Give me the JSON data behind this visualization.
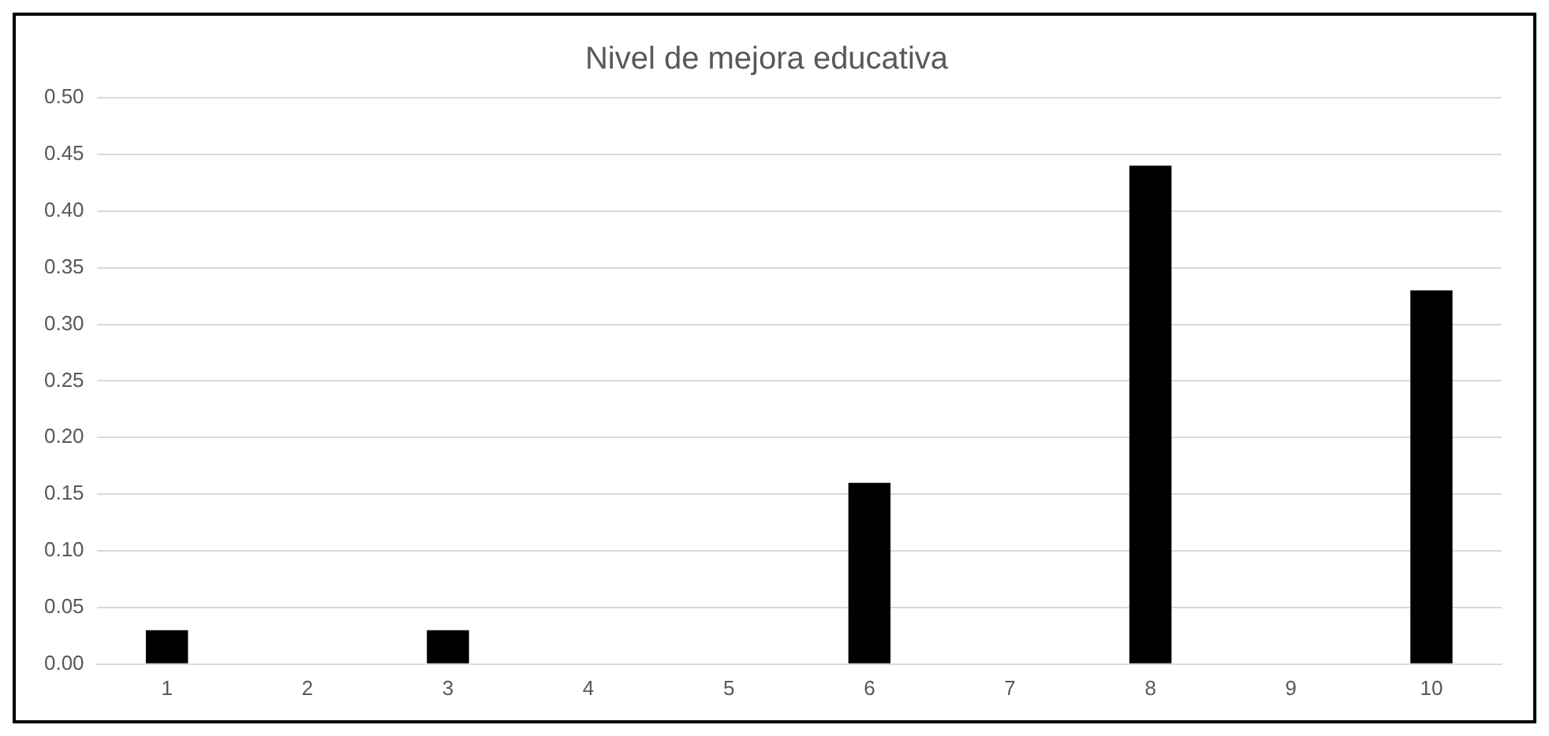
{
  "chart_data": {
    "type": "bar",
    "title": "Nivel de mejora educativa",
    "categories": [
      "1",
      "2",
      "3",
      "4",
      "5",
      "6",
      "7",
      "8",
      "9",
      "10"
    ],
    "values": [
      0.03,
      0,
      0.03,
      0,
      0,
      0.16,
      0,
      0.44,
      0,
      0.33
    ],
    "color": "#000000",
    "ylim": [
      0,
      0.5
    ],
    "yticks": [
      {
        "value": 0,
        "label": "0.00"
      },
      {
        "value": 0.05,
        "label": "0.05"
      },
      {
        "value": 0.1,
        "label": "0.10"
      },
      {
        "value": 0.15,
        "label": "0.15"
      },
      {
        "value": 0.2,
        "label": "0.20"
      },
      {
        "value": 0.25,
        "label": "0.25"
      },
      {
        "value": 0.3,
        "label": "0.30"
      },
      {
        "value": 0.35,
        "label": "0.35"
      },
      {
        "value": 0.4,
        "label": "0.40"
      },
      {
        "value": 0.45,
        "label": "0.45"
      },
      {
        "value": 0.5,
        "label": "0.50"
      }
    ],
    "grid": "y",
    "legend": false
  }
}
